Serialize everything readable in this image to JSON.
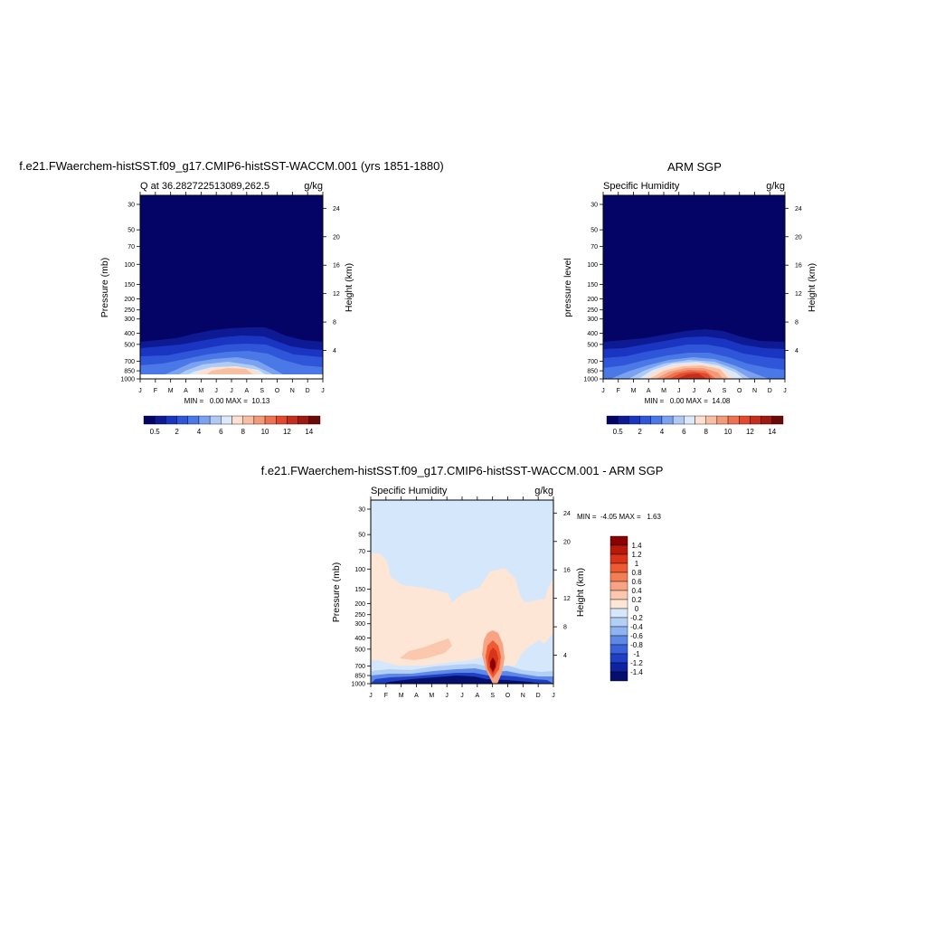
{
  "charts": {
    "top_left": {
      "title": "f.e21.FWaerchem-histSST.f09_g17.CMIP6-histSST-WACCM.001 (yrs 1851-1880)",
      "subtitle_left": "Q at 36.282722513089,262.5",
      "subtitle_right": "g/kg",
      "ylabel": "Pressure (mb)",
      "ylabel_right": "Height (km)",
      "minmax": "MIN =   0.00 MAX =  10.13"
    },
    "top_right": {
      "title": "ARM SGP",
      "subtitle_left": "Specific Humidity",
      "subtitle_right": "g/kg",
      "ylabel": "pressure level",
      "ylabel_right": "Height (km)",
      "minmax": "MIN =   0.00 MAX =  14.08"
    },
    "bottom": {
      "title": "f.e21.FWaerchem-histSST.f09_g17.CMIP6-histSST-WACCM.001 - ARM SGP",
      "subtitle_left": "Specific Humidity",
      "subtitle_right": "g/kg",
      "ylabel": "Pressure (mb)",
      "ylabel_right": "Height (km)",
      "minmax": "MIN =  -4.05 MAX =   1.63"
    }
  },
  "chart_data": [
    {
      "type": "heatmap",
      "panel": "model",
      "title": "f.e21.FWaerchem-histSST.f09_g17.CMIP6-histSST-WACCM.001 (yrs 1851-1880)",
      "xlabel": "",
      "ylabel": "Pressure (mb)",
      "ylabel_right": "Height (km)",
      "x_ticks": [
        "J",
        "F",
        "M",
        "A",
        "M",
        "J",
        "J",
        "A",
        "S",
        "O",
        "N",
        "D",
        "J"
      ],
      "y_ticks": [
        "30",
        "50",
        "70",
        "100",
        "150",
        "200",
        "250",
        "300",
        "400",
        "500",
        "700",
        "850",
        "1000"
      ],
      "y_ticks_right": [
        "24",
        "20",
        "16",
        "12",
        "8",
        "4"
      ],
      "y_scale": "log",
      "ylim": [
        1000,
        25
      ],
      "colorbar_labels": [
        "0.5",
        "2",
        "4",
        "6",
        "8",
        "10",
        "12",
        "14"
      ],
      "min": 0.0,
      "max": 10.13
    },
    {
      "type": "heatmap",
      "panel": "observations",
      "title": "ARM SGP",
      "xlabel": "",
      "ylabel": "pressure level",
      "ylabel_right": "Height (km)",
      "x_ticks": [
        "J",
        "F",
        "M",
        "A",
        "M",
        "J",
        "J",
        "A",
        "S",
        "O",
        "N",
        "D",
        "J"
      ],
      "y_ticks": [
        "30",
        "50",
        "70",
        "100",
        "150",
        "200",
        "250",
        "300",
        "400",
        "500",
        "700",
        "850",
        "1000"
      ],
      "y_ticks_right": [
        "24",
        "20",
        "16",
        "12",
        "8",
        "4"
      ],
      "y_scale": "log",
      "ylim": [
        1000,
        25
      ],
      "colorbar_labels": [
        "0.5",
        "2",
        "4",
        "6",
        "8",
        "10",
        "12",
        "14"
      ],
      "min": 0.0,
      "max": 14.08
    },
    {
      "type": "heatmap",
      "panel": "difference",
      "title": "f.e21.FWaerchem-histSST.f09_g17.CMIP6-histSST-WACCM.001 - ARM SGP",
      "xlabel": "",
      "ylabel": "Pressure (mb)",
      "ylabel_right": "Height (km)",
      "x_ticks": [
        "J",
        "F",
        "M",
        "A",
        "M",
        "J",
        "J",
        "A",
        "S",
        "O",
        "N",
        "D",
        "J"
      ],
      "y_ticks": [
        "30",
        "50",
        "70",
        "100",
        "150",
        "200",
        "250",
        "300",
        "400",
        "500",
        "700",
        "850",
        "1000"
      ],
      "y_ticks_right": [
        "24",
        "20",
        "16",
        "12",
        "8",
        "4"
      ],
      "y_scale": "log",
      "ylim": [
        1000,
        25
      ],
      "colorbar_labels": [
        "1.4",
        "1.2",
        "1",
        "0.8",
        "0.6",
        "0.4",
        "0.2",
        "0",
        "-0.2",
        "-0.4",
        "-0.6",
        "-0.8",
        "-1",
        "-1.2",
        "-1.4"
      ],
      "min": -4.05,
      "max": 1.63
    }
  ],
  "colors": {
    "seq": [
      "#030466",
      "#0d1a94",
      "#1a35c2",
      "#2f56d8",
      "#4a78e6",
      "#7aa2f0",
      "#aecbf5",
      "#dce9fb",
      "#fde0cf",
      "#f9bfa2",
      "#f49a78",
      "#ee7150",
      "#e24a2e",
      "#c62d1d",
      "#9c1a10",
      "#6b0a06"
    ],
    "div": [
      "#8b0000",
      "#b81a0a",
      "#d9331a",
      "#ee5a32",
      "#f47f55",
      "#f8a383",
      "#fbc8ad",
      "#fde6d6",
      "#d5e7fb",
      "#b3cff6",
      "#8fb3f0",
      "#5d88e6",
      "#3a63d9",
      "#1f3fc4",
      "#0d23a0",
      "#05106e"
    ]
  }
}
